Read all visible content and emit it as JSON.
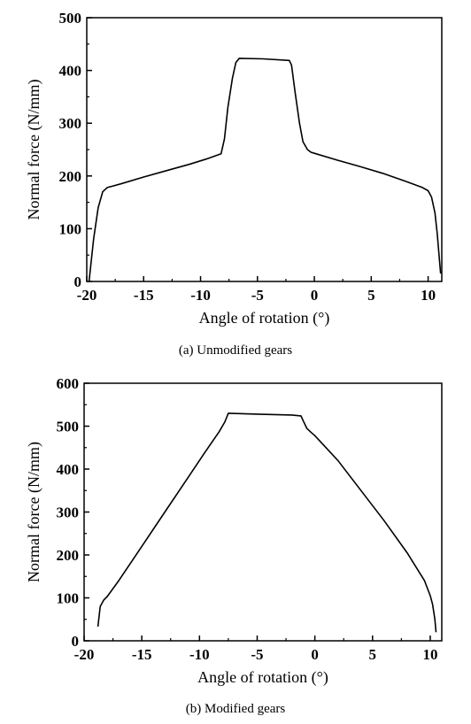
{
  "chart_data": [
    {
      "type": "line",
      "caption": "(a) Unmodified gears",
      "xlabel": "Angle of rotation (°)",
      "ylabel": "Normal force (N/mm)",
      "xlim": [
        -20,
        11.2
      ],
      "ylim": [
        0,
        500
      ],
      "xticks": [
        -20,
        -15,
        -10,
        -5,
        0,
        5,
        10
      ],
      "yticks": [
        0,
        100,
        200,
        300,
        400,
        500
      ],
      "grid": false,
      "series": [
        {
          "x": [
            -19.8,
            -19.4,
            -19.0,
            -18.6,
            -18.2,
            -17.0,
            -15.0,
            -13.0,
            -11.0,
            -9.5,
            -8.2,
            -7.9,
            -7.6,
            -7.2,
            -6.9,
            -6.6,
            -4.5,
            -2.2,
            -2.0,
            -1.7,
            -1.3,
            -1.0,
            -0.6,
            -0.3,
            0.0,
            2.0,
            4.0,
            6.0,
            8.0,
            9.5,
            10.0,
            10.3,
            10.6,
            10.8,
            11.0,
            11.1
          ],
          "y": [
            0,
            80,
            140,
            170,
            178,
            185,
            198,
            210,
            222,
            232,
            242,
            270,
            330,
            385,
            415,
            423,
            422,
            419,
            410,
            360,
            300,
            265,
            250,
            245,
            243,
            230,
            218,
            205,
            190,
            178,
            172,
            160,
            130,
            90,
            40,
            15
          ]
        }
      ]
    },
    {
      "type": "line",
      "caption": "(b) Modified gears",
      "xlabel": "Angle of rotation (°)",
      "ylabel": "Normal force (N/mm)",
      "xlim": [
        -20,
        11
      ],
      "ylim": [
        0,
        600
      ],
      "xticks": [
        -20,
        -15,
        -10,
        -5,
        0,
        5,
        10
      ],
      "yticks": [
        0,
        100,
        200,
        300,
        400,
        500,
        600
      ],
      "grid": false,
      "series": [
        {
          "x": [
            -18.8,
            -18.6,
            -18.3,
            -18.0,
            -17.0,
            -15.0,
            -13.0,
            -11.0,
            -9.5,
            -8.3,
            -7.8,
            -7.5,
            -5.0,
            -2.0,
            -1.2,
            -1.0,
            -0.7,
            -0.3,
            0.0,
            2.0,
            4.0,
            6.0,
            8.0,
            9.5,
            10.0,
            10.2,
            10.4,
            10.5
          ],
          "y": [
            33,
            80,
            95,
            103,
            140,
            220,
            300,
            380,
            440,
            487,
            510,
            530,
            528,
            526,
            524,
            512,
            495,
            485,
            478,
            420,
            350,
            280,
            205,
            140,
            105,
            85,
            50,
            20
          ]
        }
      ]
    }
  ]
}
